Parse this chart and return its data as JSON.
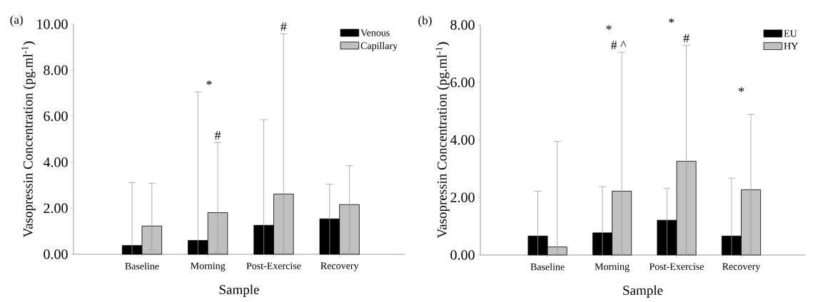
{
  "chart_data": [
    {
      "type": "bar",
      "xlabel": "Sample",
      "ylabel": "Vasopressin Concentration (pg.ml$^{-1}$)",
      "categories": [
        "Baseline",
        "Morning",
        "Post-Exercise",
        "Recovery"
      ],
      "series": [
        {
          "name": "Venous",
          "color": "#000000",
          "values": [
            0.38,
            0.6,
            1.26,
            1.54
          ],
          "errors": [
            [
              0,
              3.12
            ],
            [
              0,
              7.06
            ],
            [
              0,
              5.85
            ],
            [
              0,
              3.05
            ]
          ]
        },
        {
          "name": "Capillary",
          "color": "#c0c0c0",
          "values": [
            1.23,
            1.81,
            2.62,
            2.16
          ],
          "errors": [
            [
              0.2,
              3.09
            ],
            [
              0.06,
              4.86
            ],
            [
              0,
              9.58
            ],
            [
              0,
              3.85
            ]
          ]
        }
      ],
      "ylim": [
        0,
        10
      ],
      "yticks": [
        {
          "value": 0,
          "label": "0.00"
        },
        {
          "value": 2,
          "label": "2.00"
        },
        {
          "value": 4,
          "label": "4.00"
        },
        {
          "value": 6,
          "label": "6.00"
        },
        {
          "value": 8,
          "label": "8.00"
        },
        {
          "value": 10,
          "label": "10.00"
        }
      ],
      "legend": "top right",
      "annotations": [
        "(a)",
        "*",
        "#",
        "#"
      ]
    },
    {
      "type": "bar",
      "xlabel": "Sample",
      "ylabel": "Vasopressin Concentration (pg.ml$^{-1}$)",
      "categories": [
        "Baseline",
        "Morning",
        "Post-Exercise",
        "Recovery"
      ],
      "series": [
        {
          "name": "EU",
          "color": "#000000",
          "values": [
            0.66,
            0.77,
            1.21,
            0.66
          ],
          "errors": [
            [
              0,
              2.22
            ],
            [
              0,
              2.38
            ],
            [
              0,
              2.32
            ],
            [
              0,
              2.67
            ]
          ]
        },
        {
          "name": "HY",
          "color": "#c0c0c0",
          "values": [
            0.28,
            2.22,
            3.26,
            2.27
          ],
          "errors": [
            [
              0,
              3.95
            ],
            [
              0,
              7.05
            ],
            [
              0,
              7.29
            ],
            [
              0,
              4.89
            ]
          ]
        }
      ],
      "ylim": [
        0,
        8
      ],
      "yticks": [
        {
          "value": 0,
          "label": "0.00"
        },
        {
          "value": 2,
          "label": "2.00"
        },
        {
          "value": 4,
          "label": "4.00"
        },
        {
          "value": 6,
          "label": "6.00"
        },
        {
          "value": 8,
          "label": "8.00"
        }
      ],
      "legend": "top right",
      "annotations": [
        "(b)",
        "# ^",
        "*",
        "#",
        "*",
        "*"
      ]
    }
  ]
}
